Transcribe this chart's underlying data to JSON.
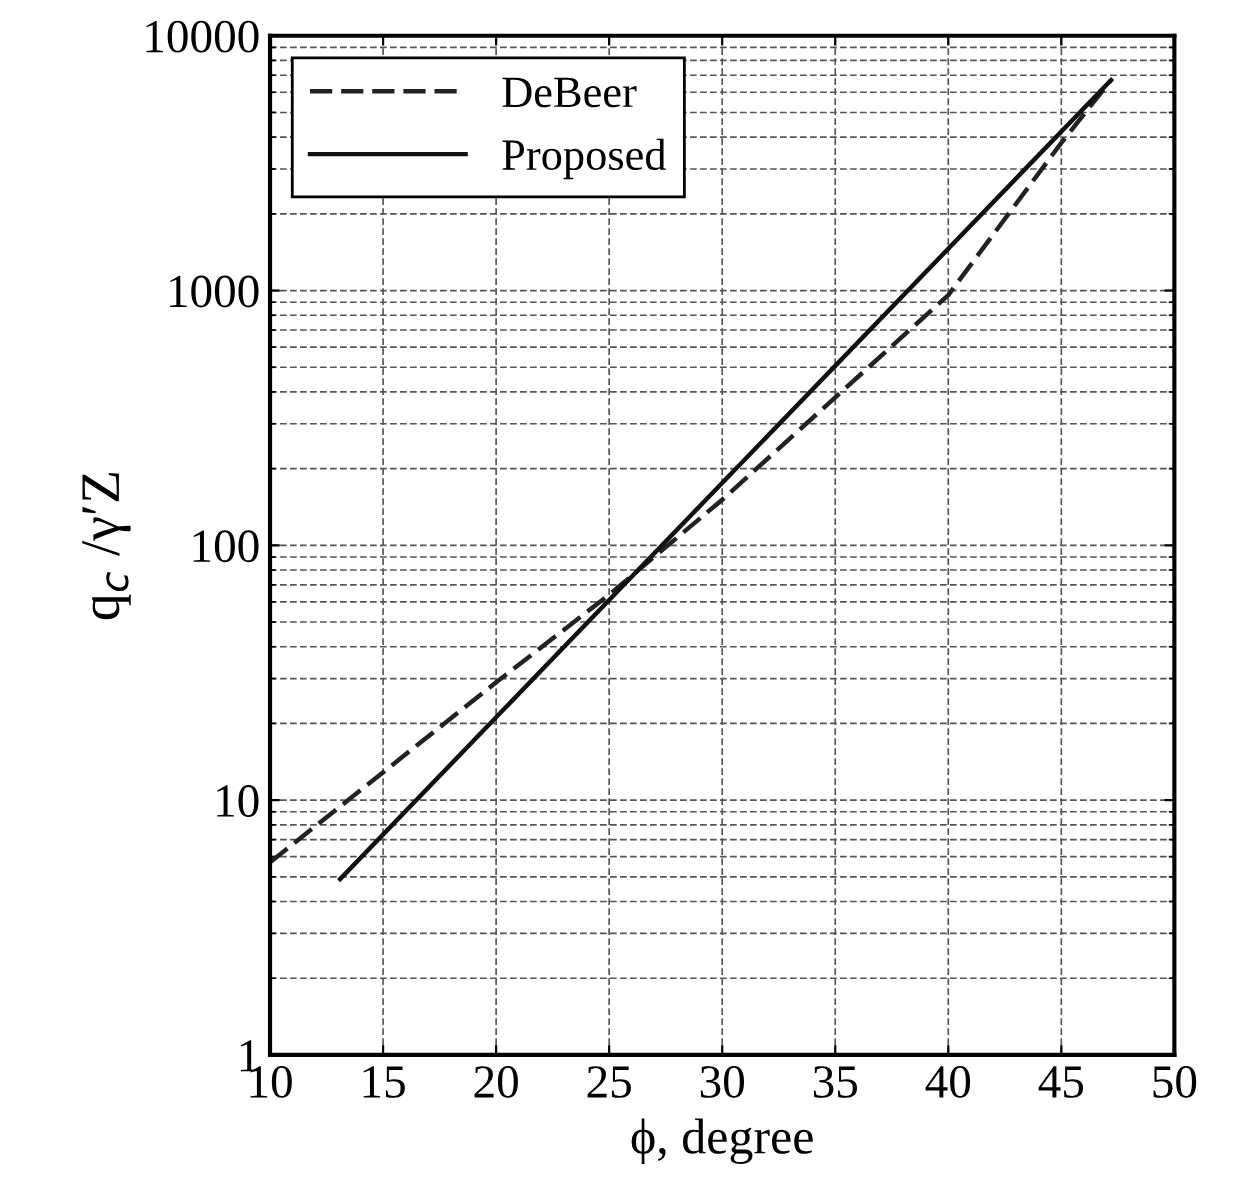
{
  "chart_data": {
    "type": "line",
    "xlabel": "ϕ, degree",
    "ylabel": "q$_{c}$ /γ′Z",
    "log": "y",
    "grid": true,
    "legend": "top left",
    "xlim": [
      10,
      50
    ],
    "xticks": [
      10,
      15,
      20,
      25,
      30,
      35,
      40,
      45,
      50
    ],
    "ylim": [
      1,
      10000
    ],
    "yticks": [
      1,
      10,
      100,
      1000,
      10000
    ],
    "series": [
      {
        "name": "DeBeer",
        "color": "#222222",
        "line_style": "dashed",
        "x": [
          10,
          20,
          25,
          30,
          40,
          45,
          47.2
        ],
        "values": [
          5.7,
          29,
          64,
          151,
          960,
          3800,
          6700
        ]
      },
      {
        "name": "Proposed",
        "color": "#111111",
        "line_style": "solid",
        "x": [
          13.1,
          25,
          47.2
        ],
        "values": [
          4.9,
          61,
          6700
        ]
      }
    ]
  }
}
